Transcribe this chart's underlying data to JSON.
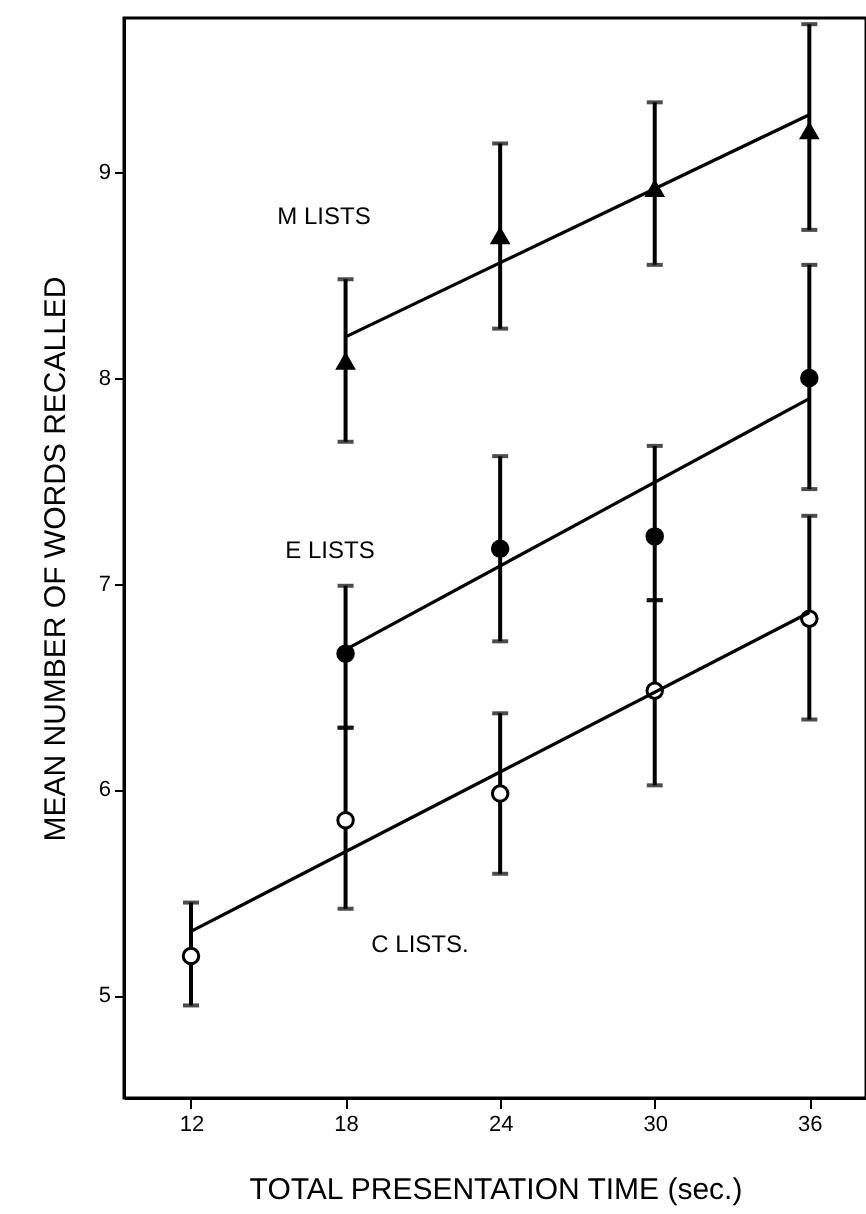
{
  "chart_data": {
    "type": "line",
    "xlabel": "TOTAL PRESENTATION TIME (sec.)",
    "ylabel": "MEAN NUMBER OF WORDS RECALLED",
    "xlim": [
      9.4,
      38.2
    ],
    "ylim": [
      4.5,
      9.75
    ],
    "xticks": [
      12,
      18,
      24,
      30,
      36
    ],
    "yticks": [
      5,
      6,
      7,
      8,
      9
    ],
    "grid": false,
    "series": [
      {
        "type": "scatter",
        "color": "#000000",
        "marker": "triangle",
        "x": [
          18,
          24,
          30,
          36
        ],
        "values": [
          8.08,
          8.69,
          8.92,
          9.2
        ],
        "errors": [
          [
            7.69,
            8.48
          ],
          [
            8.24,
            9.14
          ],
          [
            8.55,
            9.34
          ],
          [
            8.72,
            9.72
          ]
        ]
      },
      {
        "type": "scatter",
        "color": "#000000",
        "marker": "circle",
        "x": [
          18,
          24,
          30,
          36
        ],
        "values": [
          6.66,
          7.17,
          7.23,
          8.0
        ],
        "errors": [
          [
            6.3,
            6.99
          ],
          [
            6.72,
            7.62
          ],
          [
            6.92,
            7.67
          ],
          [
            7.46,
            8.55
          ]
        ]
      },
      {
        "type": "scatter",
        "color": "#ffffff",
        "marker": "circle",
        "x": [
          12,
          18,
          24,
          30,
          36
        ],
        "values": [
          5.19,
          5.85,
          5.98,
          6.48,
          6.83
        ],
        "errors": [
          [
            4.95,
            5.45
          ],
          [
            5.42,
            6.3
          ],
          [
            5.59,
            6.37
          ],
          [
            6.02,
            6.92
          ],
          [
            6.34,
            7.33
          ]
        ]
      },
      {
        "color": "#000000",
        "marker": "none",
        "line_style": "solid",
        "x": [
          18,
          36
        ],
        "values": [
          8.2,
          9.28
        ]
      },
      {
        "color": "#000000",
        "marker": "none",
        "line_style": "solid",
        "x": [
          18,
          36
        ],
        "values": [
          6.68,
          7.9
        ]
      },
      {
        "color": "#000000",
        "marker": "none",
        "line_style": "solid",
        "x": [
          12,
          36
        ],
        "values": [
          5.31,
          6.86
        ]
      }
    ],
    "annotations": [
      "M LISTS",
      "E LISTS",
      "C LISTS."
    ]
  }
}
